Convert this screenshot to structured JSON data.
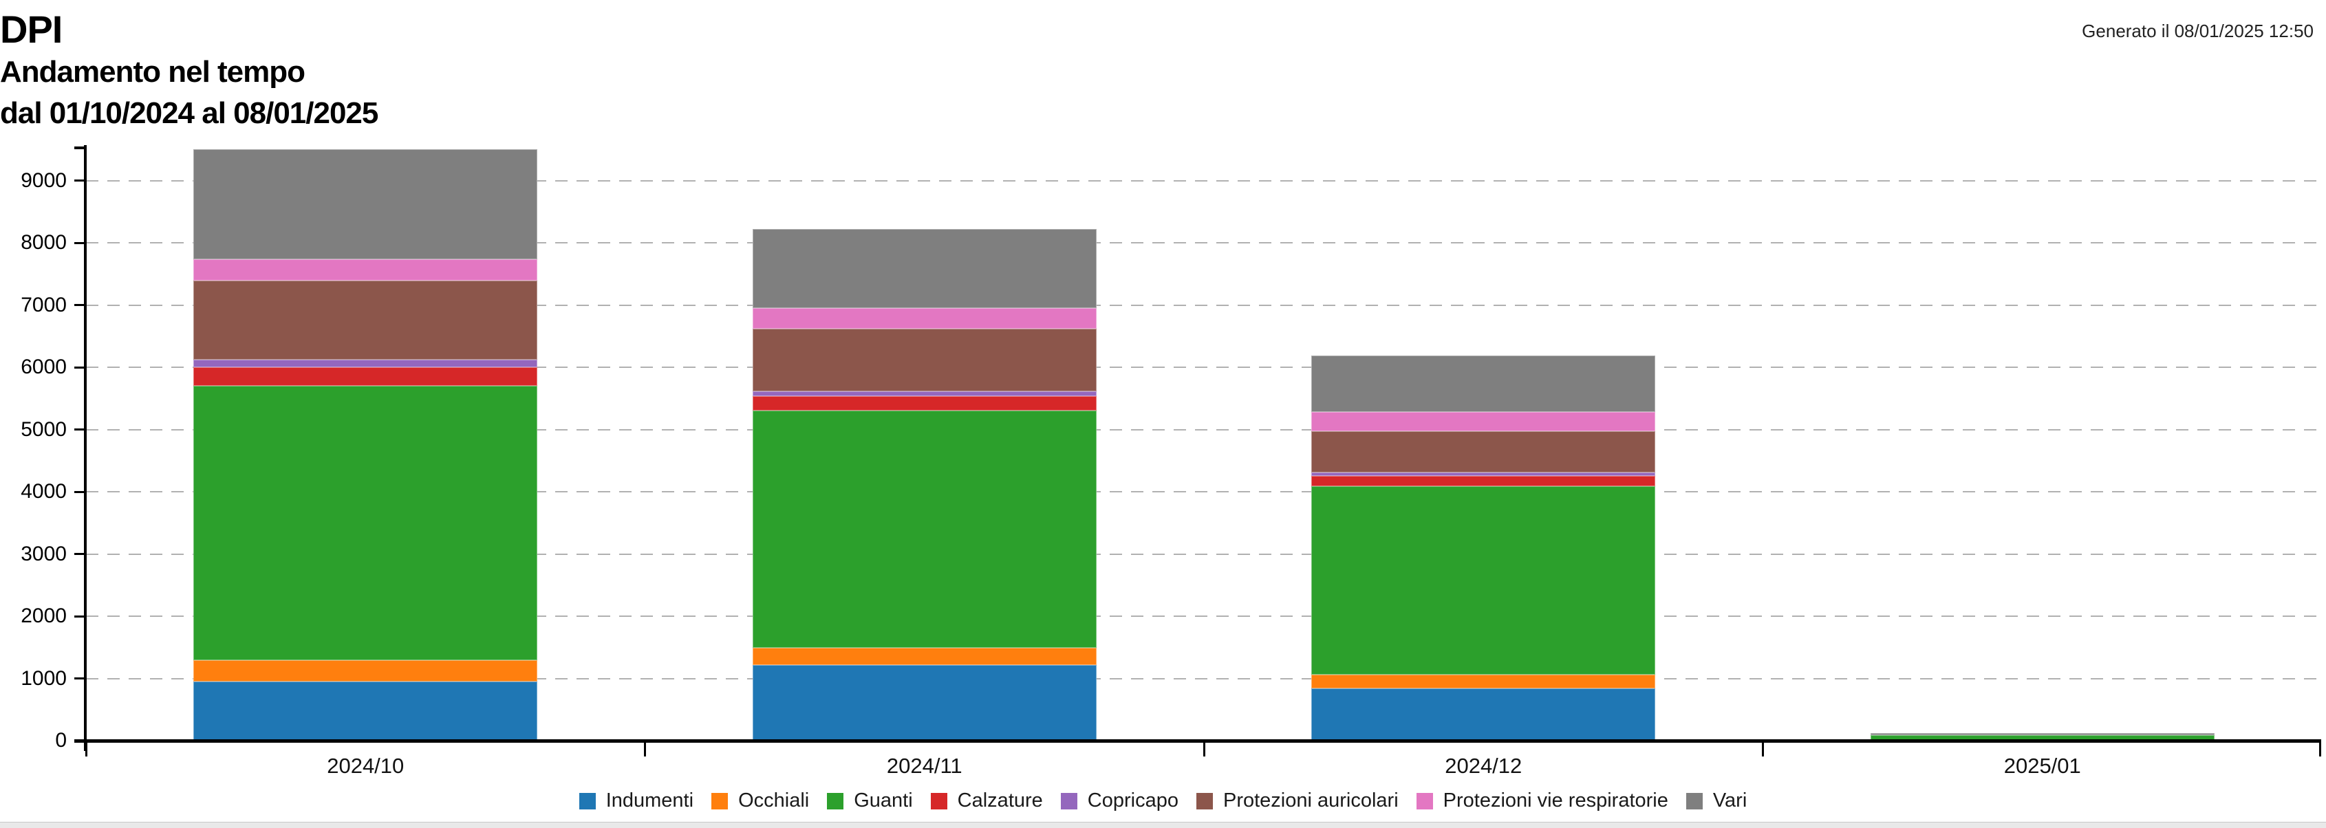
{
  "header": {
    "title": "DPI",
    "subtitle": "Andamento nel tempo",
    "period": "dal 01/10/2024 al 08/01/2025",
    "generated": "Generato il 08/01/2025 12:50"
  },
  "chart_data": {
    "type": "bar",
    "stacked": true,
    "title": "DPI",
    "subtitle": "Andamento nel tempo",
    "period_label": "dal 01/10/2024 al 08/01/2025",
    "categories": [
      "2024/10",
      "2024/11",
      "2024/12",
      "2025/01"
    ],
    "series": [
      {
        "name": "Indumenti",
        "color": "#1f77b4",
        "values": [
          950,
          1220,
          840,
          0
        ]
      },
      {
        "name": "Occhiali",
        "color": "#ff7f0e",
        "values": [
          340,
          270,
          220,
          0
        ]
      },
      {
        "name": "Guanti",
        "color": "#2ca02c",
        "values": [
          4420,
          3820,
          3030,
          90
        ]
      },
      {
        "name": "Calzature",
        "color": "#d62728",
        "values": [
          290,
          230,
          170,
          0
        ]
      },
      {
        "name": "Copricapo",
        "color": "#9467bd",
        "values": [
          120,
          80,
          50,
          0
        ]
      },
      {
        "name": "Protezioni auricolari",
        "color": "#8c564b",
        "values": [
          1280,
          1000,
          670,
          0
        ]
      },
      {
        "name": "Protezioni vie respiratorie",
        "color": "#e377c2",
        "values": [
          340,
          340,
          310,
          0
        ]
      },
      {
        "name": "Vari",
        "color": "#7f7f7f",
        "values": [
          1770,
          1270,
          900,
          30
        ]
      }
    ],
    "totals": [
      9510,
      8230,
      6190,
      120
    ],
    "y_axis": {
      "min": 0,
      "max": 9530,
      "tick_step": 1000,
      "tick_labels": [
        "0",
        "1000",
        "2000",
        "3000",
        "4000",
        "5000",
        "6000",
        "7000",
        "8000",
        "9000"
      ]
    },
    "grid": "horizontal-dashed",
    "legend_position": "bottom-center",
    "gridline_color": "#b1b1b1",
    "axis_color": "#000000"
  }
}
